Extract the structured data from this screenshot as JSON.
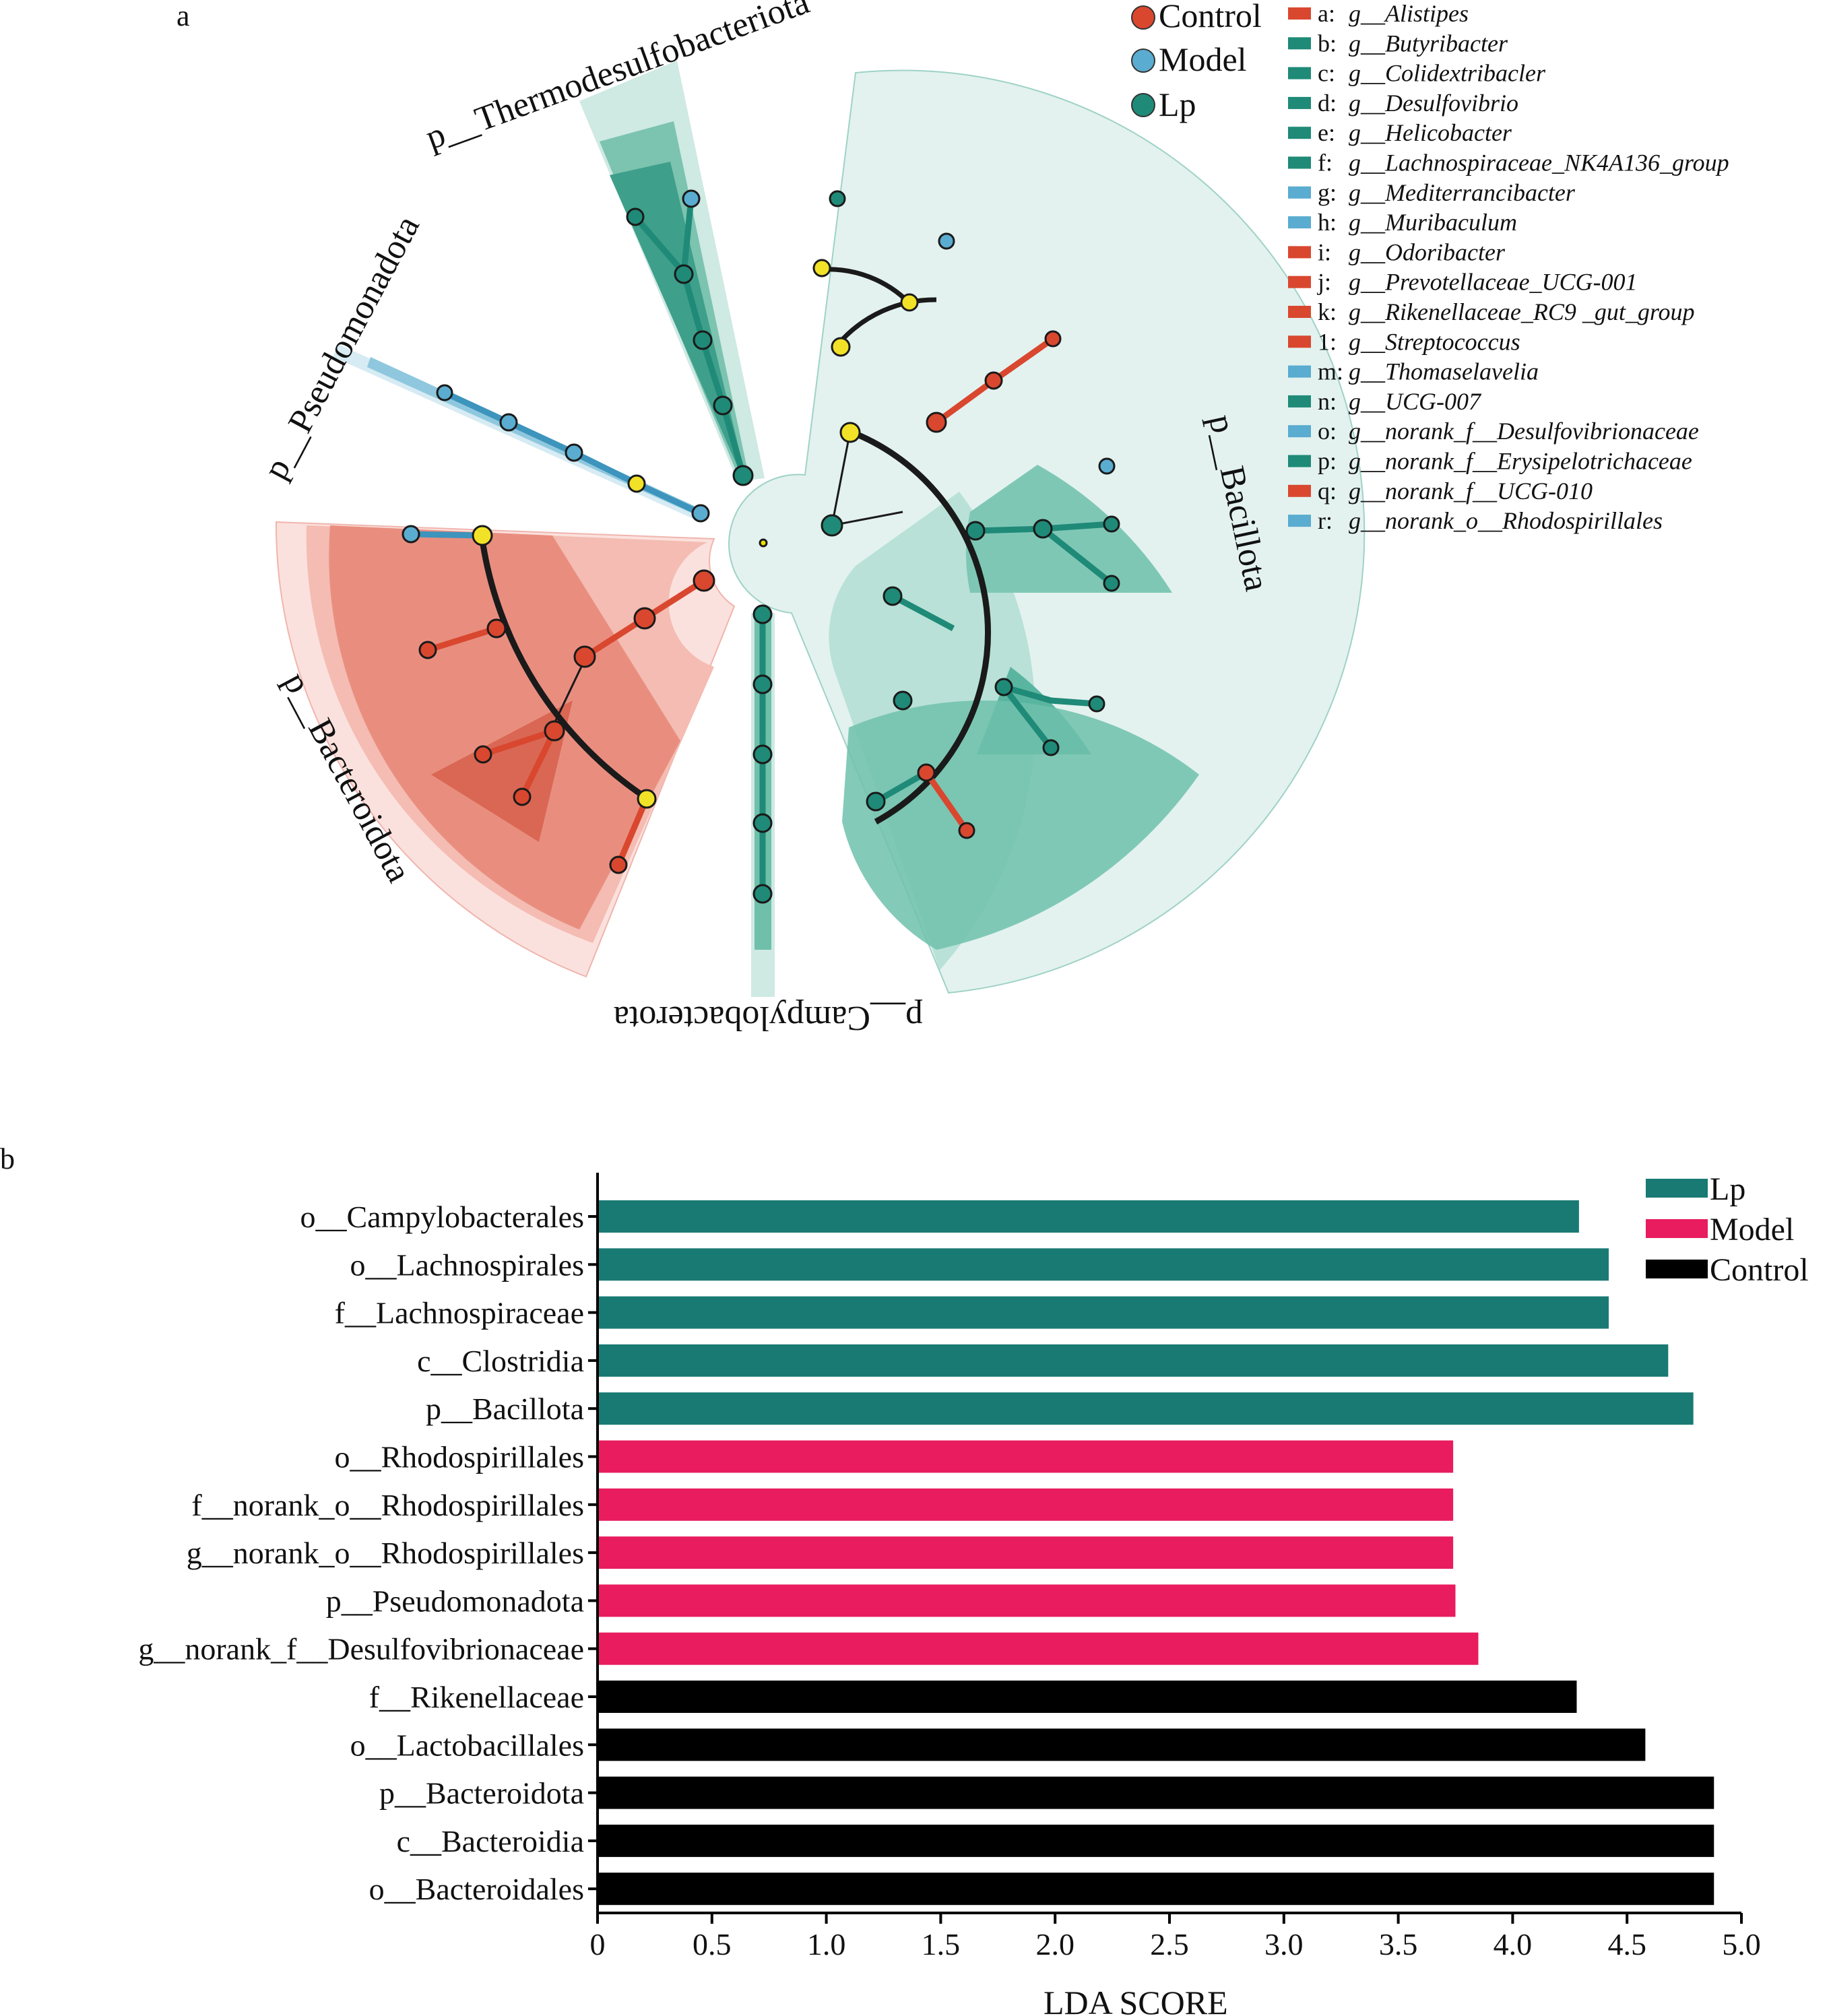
{
  "panel_a": {
    "label": "a",
    "legend_groups": [
      {
        "name": "Control",
        "color": "#d9472f"
      },
      {
        "name": "Model",
        "color": "#5aacd0"
      },
      {
        "name": "Lp",
        "color": "#1f8a77"
      }
    ],
    "phyla": [
      "p__Thermodesulfobacteriota",
      "p__Pseudomonadota",
      "p__Bacteroidota",
      "p__Campylobacterota",
      "p__Bacillota"
    ],
    "biomarkers": [
      {
        "letter": "a:",
        "name": "g__Alistipes",
        "group": "Control"
      },
      {
        "letter": "b:",
        "name": "g__Butyribacter",
        "group": "Lp"
      },
      {
        "letter": "c:",
        "name": "g__Colidextribacler",
        "group": "Lp"
      },
      {
        "letter": "d:",
        "name": "g__Desulfovibrio",
        "group": "Lp"
      },
      {
        "letter": "e:",
        "name": "g__Helicobacter",
        "group": "Lp"
      },
      {
        "letter": "f:",
        "name": "g__Lachnospiraceae_NK4A136_group",
        "group": "Lp"
      },
      {
        "letter": "g:",
        "name": "g__Mediterrancibacter",
        "group": "Model"
      },
      {
        "letter": "h:",
        "name": "g__Muribaculum",
        "group": "Model"
      },
      {
        "letter": "i:",
        "name": "g__Odoribacter",
        "group": "Control"
      },
      {
        "letter": "j:",
        "name": "g__Prevotellaceae_UCG-001",
        "group": "Control"
      },
      {
        "letter": "k:",
        "name": "g__Rikenellaceae_RC9 _gut_group",
        "group": "Control"
      },
      {
        "letter": "1:",
        "name": "g__Streptococcus",
        "group": "Control"
      },
      {
        "letter": "m:",
        "name": "g__Thomaselavelia",
        "group": "Model"
      },
      {
        "letter": "n:",
        "name": "g__UCG-007",
        "group": "Lp"
      },
      {
        "letter": "o:",
        "name": "g__norank_f__Desulfovibrionaceae",
        "group": "Model"
      },
      {
        "letter": "p:",
        "name": "g__norank_f__Erysipelotrichaceae",
        "group": "Lp"
      },
      {
        "letter": "q:",
        "name": "g__norank_f__UCG-010",
        "group": "Control"
      },
      {
        "letter": "r:",
        "name": "g__norank_o__Rhodospirillales",
        "group": "Model"
      }
    ]
  },
  "chart_data": {
    "type": "bar",
    "orientation": "horizontal",
    "panel_label": "b",
    "title": "",
    "xlabel": "LDA SCORE",
    "ylabel": "",
    "xlim": [
      0,
      5
    ],
    "xticks": [
      "0",
      "0.5",
      "1.0",
      "1.5",
      "2.0",
      "2.5",
      "3.0",
      "3.5",
      "4.0",
      "4.5",
      "5.0"
    ],
    "legend": [
      {
        "name": "Lp",
        "color": "#197a74"
      },
      {
        "name": "Model",
        "color": "#e81c5e"
      },
      {
        "name": "Control",
        "color": "#000000"
      }
    ],
    "bars": [
      {
        "label": "o__Campylobacterales",
        "value": 4.29,
        "group": "Lp"
      },
      {
        "label": "o__Lachnospirales",
        "value": 4.42,
        "group": "Lp"
      },
      {
        "label": "f__Lachnospiraceae",
        "value": 4.42,
        "group": "Lp"
      },
      {
        "label": "c__Clostridia",
        "value": 4.68,
        "group": "Lp"
      },
      {
        "label": "p__Bacillota",
        "value": 4.79,
        "group": "Lp"
      },
      {
        "label": "o__Rhodospirillales",
        "value": 3.74,
        "group": "Model"
      },
      {
        "label": "f__norank_o__Rhodospirillales",
        "value": 3.74,
        "group": "Model"
      },
      {
        "label": "g__norank_o__Rhodospirillales",
        "value": 3.74,
        "group": "Model"
      },
      {
        "label": "p__Pseudomonadota",
        "value": 3.75,
        "group": "Model"
      },
      {
        "label": "g__norank_f__Desulfovibrionaceae",
        "value": 3.85,
        "group": "Model"
      },
      {
        "label": "f__Rikenellaceae",
        "value": 4.28,
        "group": "Control"
      },
      {
        "label": "o__Lactobacillales",
        "value": 4.58,
        "group": "Control"
      },
      {
        "label": "p__Bacteroidota",
        "value": 4.88,
        "group": "Control"
      },
      {
        "label": "c__Bacteroidia",
        "value": 4.88,
        "group": "Control"
      },
      {
        "label": "o__Bacteroidales",
        "value": 4.88,
        "group": "Control"
      }
    ]
  }
}
